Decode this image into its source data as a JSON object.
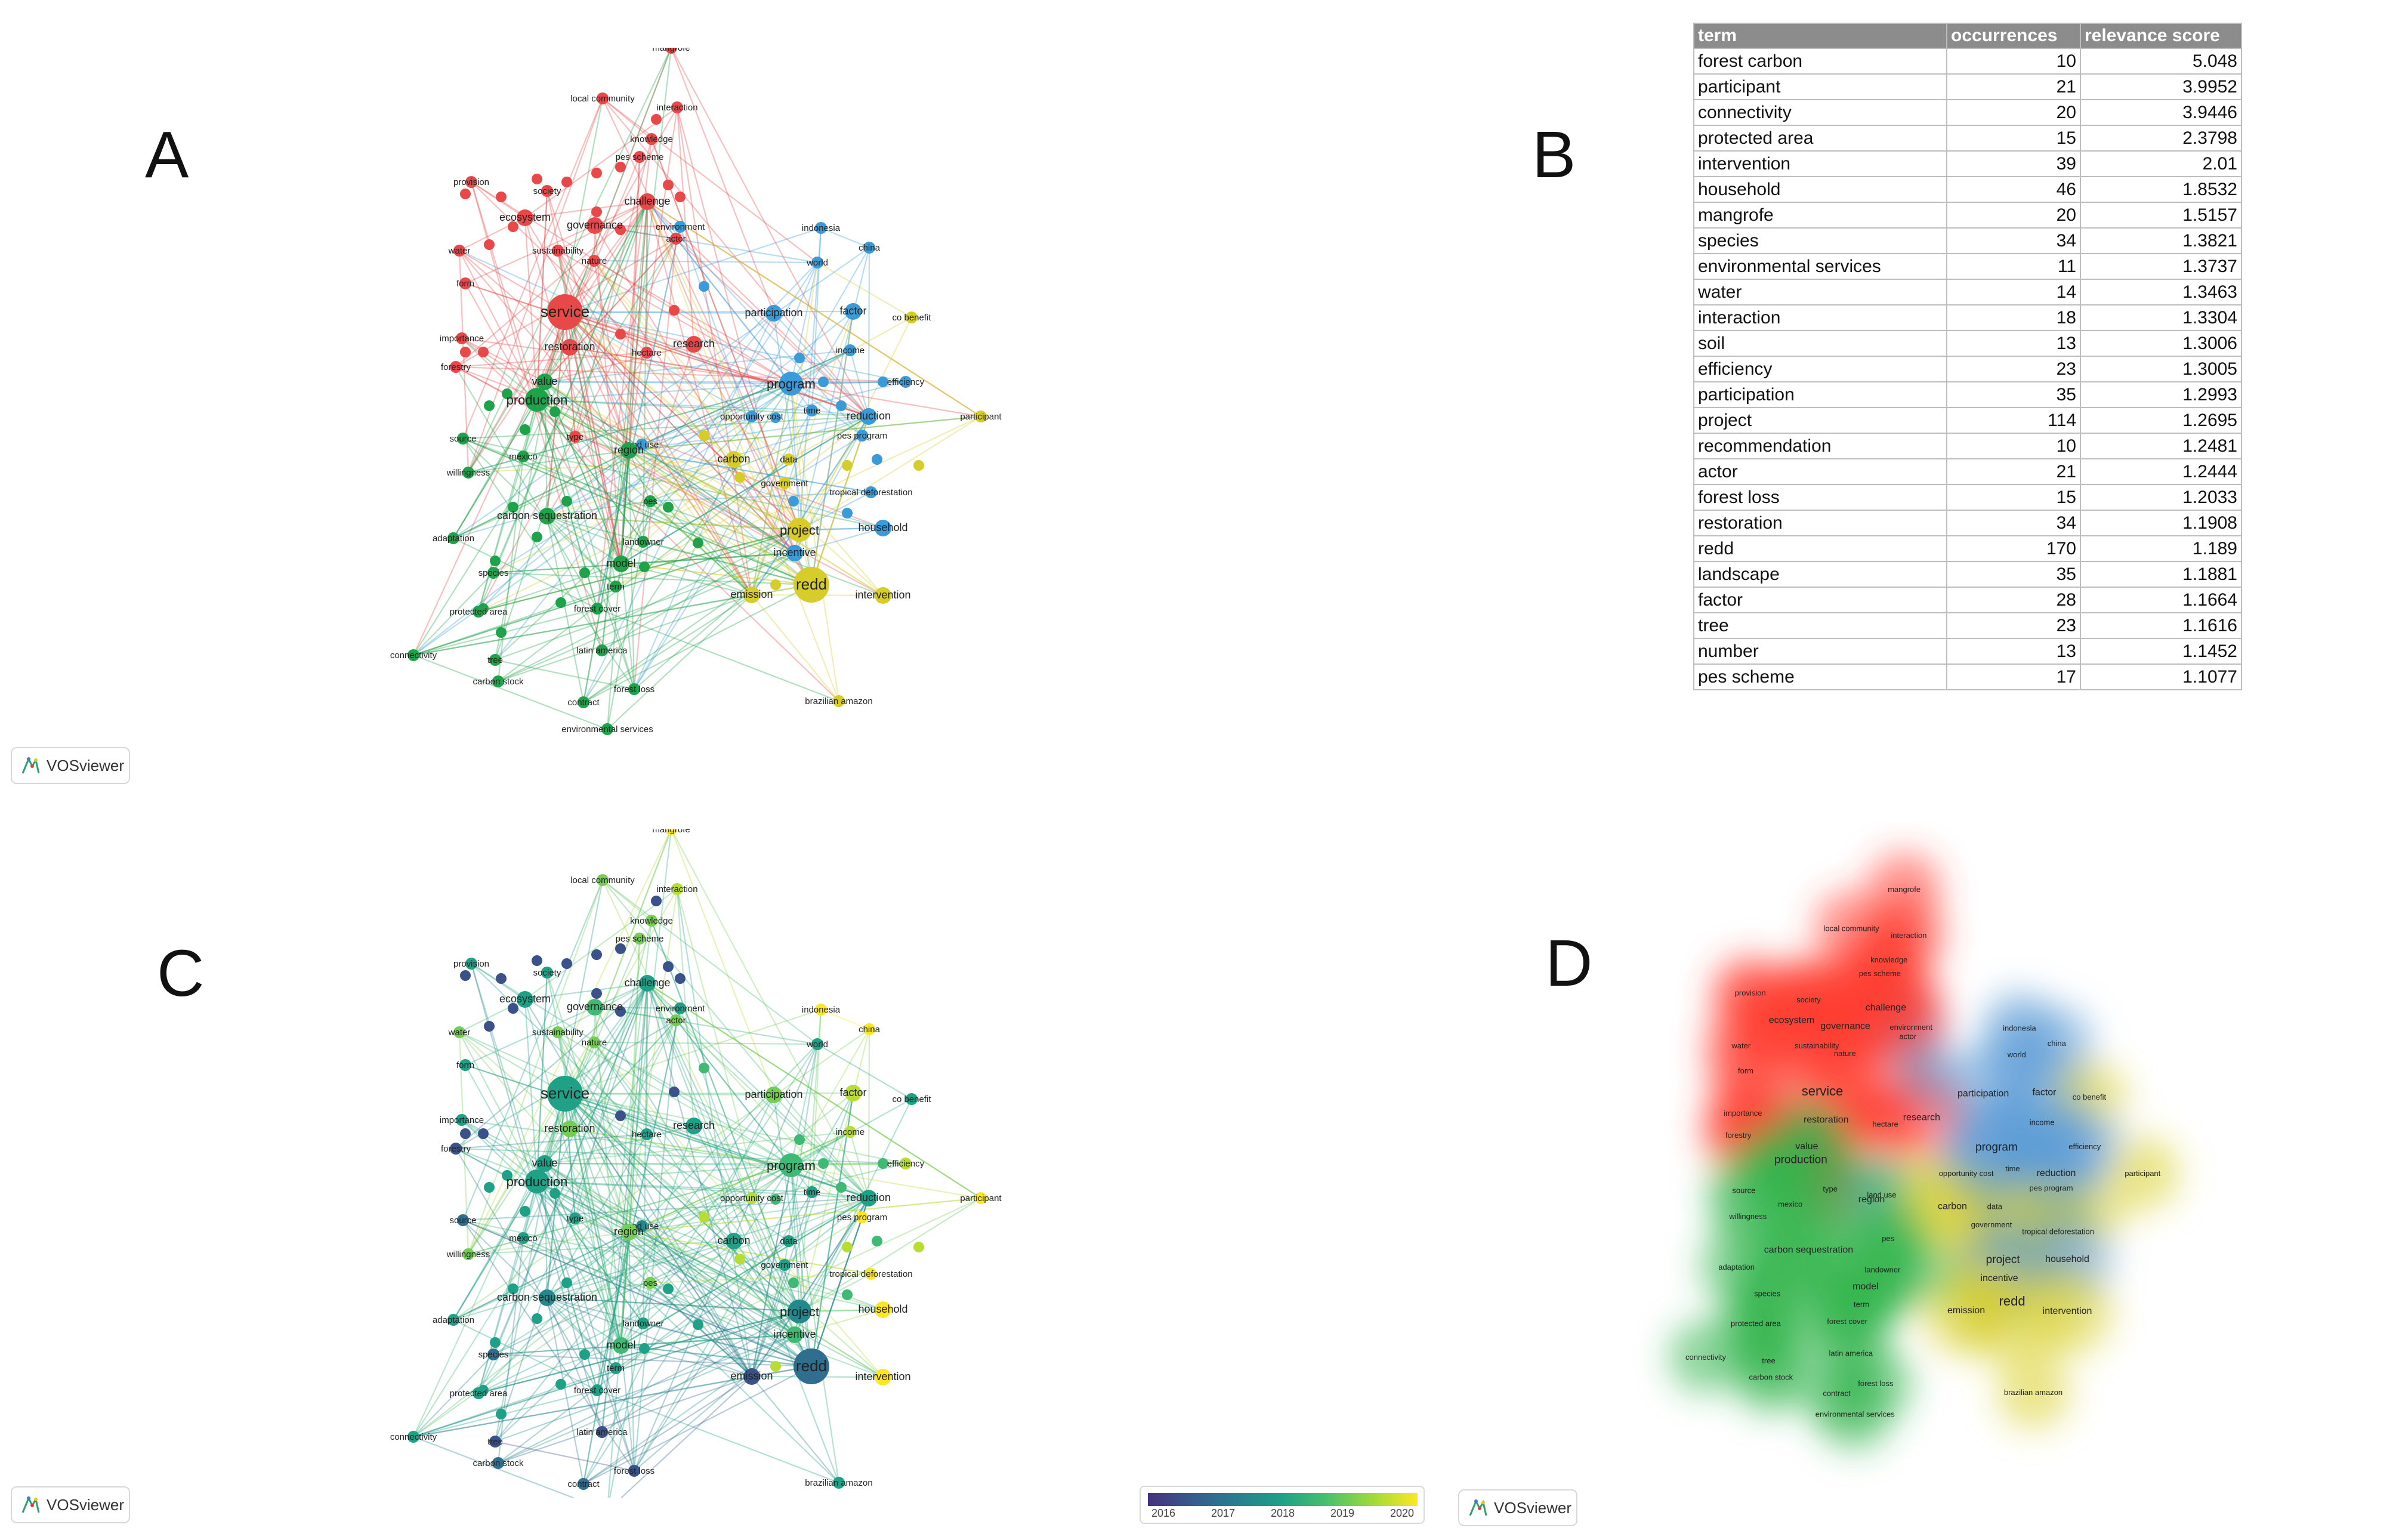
{
  "panels": {
    "a": "A",
    "b": "B",
    "c": "C",
    "d": "D"
  },
  "vosviewer_label": "VOSviewer",
  "legend": {
    "years": [
      "2016",
      "2017",
      "2018",
      "2019",
      "2020"
    ]
  },
  "table": {
    "headers": [
      "term",
      "occurrences",
      "relevance score"
    ],
    "rows": [
      [
        "forest carbon",
        "10",
        "5.048"
      ],
      [
        "participant",
        "21",
        "3.9952"
      ],
      [
        "connectivity",
        "20",
        "3.9446"
      ],
      [
        "protected area",
        "15",
        "2.3798"
      ],
      [
        "intervention",
        "39",
        "2.01"
      ],
      [
        "household",
        "46",
        "1.8532"
      ],
      [
        "mangrofe",
        "20",
        "1.5157"
      ],
      [
        "species",
        "34",
        "1.3821"
      ],
      [
        "environmental services",
        "11",
        "1.3737"
      ],
      [
        "water",
        "14",
        "1.3463"
      ],
      [
        "interaction",
        "18",
        "1.3304"
      ],
      [
        "soil",
        "13",
        "1.3006"
      ],
      [
        "efficiency",
        "23",
        "1.3005"
      ],
      [
        "participation",
        "35",
        "1.2993"
      ],
      [
        "project",
        "114",
        "1.2695"
      ],
      [
        "recommendation",
        "10",
        "1.2481"
      ],
      [
        "actor",
        "21",
        "1.2444"
      ],
      [
        "forest loss",
        "15",
        "1.2033"
      ],
      [
        "restoration",
        "34",
        "1.1908"
      ],
      [
        "redd",
        "170",
        "1.189"
      ],
      [
        "landscape",
        "35",
        "1.1881"
      ],
      [
        "factor",
        "28",
        "1.1664"
      ],
      [
        "tree",
        "23",
        "1.1616"
      ],
      [
        "number",
        "13",
        "1.1452"
      ],
      [
        "pes scheme",
        "17",
        "1.1077"
      ]
    ]
  },
  "network": {
    "nodes": [
      {
        "label": "mangrofe",
        "cluster": "red",
        "year": 2020,
        "size": 1
      },
      {
        "label": "local community",
        "cluster": "red",
        "year": 2019,
        "size": 1
      },
      {
        "label": "interaction",
        "cluster": "red",
        "year": 2019.5,
        "size": 1
      },
      {
        "label": "knowledge",
        "cluster": "red",
        "year": 2019,
        "size": 1
      },
      {
        "label": "pes scheme",
        "cluster": "red",
        "year": 2019,
        "size": 1
      },
      {
        "label": "provision",
        "cluster": "red",
        "year": 2018,
        "size": 1
      },
      {
        "label": "society",
        "cluster": "red",
        "year": 2018,
        "size": 1
      },
      {
        "label": "challenge",
        "cluster": "red",
        "year": 2018,
        "size": 2
      },
      {
        "label": "ecosystem",
        "cluster": "red",
        "year": 2018,
        "size": 2
      },
      {
        "label": "governance",
        "cluster": "red",
        "year": 2018.5,
        "size": 2
      },
      {
        "label": "environment",
        "cluster": "blue",
        "year": 2018,
        "size": 1
      },
      {
        "label": "indonesia",
        "cluster": "blue",
        "year": 2020,
        "size": 1
      },
      {
        "label": "water",
        "cluster": "red",
        "year": 2019,
        "size": 1
      },
      {
        "label": "sustainability",
        "cluster": "red",
        "year": 2019,
        "size": 1
      },
      {
        "label": "nature",
        "cluster": "red",
        "year": 2019,
        "size": 1
      },
      {
        "label": "actor",
        "cluster": "red",
        "year": 2019,
        "size": 1
      },
      {
        "label": "china",
        "cluster": "blue",
        "year": 2020,
        "size": 1
      },
      {
        "label": "world",
        "cluster": "blue",
        "year": 2018,
        "size": 1
      },
      {
        "label": "form",
        "cluster": "red",
        "year": 2018,
        "size": 1
      },
      {
        "label": "service",
        "cluster": "red",
        "year": 2018,
        "size": 4
      },
      {
        "label": "participation",
        "cluster": "blue",
        "year": 2019,
        "size": 2
      },
      {
        "label": "factor",
        "cluster": "blue",
        "year": 2019.5,
        "size": 2
      },
      {
        "label": "co benefit",
        "cluster": "yellow",
        "year": 2018,
        "size": 1
      },
      {
        "label": "importance",
        "cluster": "red",
        "year": 2018,
        "size": 1
      },
      {
        "label": "restoration",
        "cluster": "red",
        "year": 2019,
        "size": 2
      },
      {
        "label": "hectare",
        "cluster": "red",
        "year": 2018,
        "size": 1
      },
      {
        "label": "research",
        "cluster": "red",
        "year": 2018,
        "size": 2
      },
      {
        "label": "income",
        "cluster": "blue",
        "year": 2019.5,
        "size": 1
      },
      {
        "label": "forestry",
        "cluster": "red",
        "year": 2016.5,
        "size": 1
      },
      {
        "label": "value",
        "cluster": "green",
        "year": 2018,
        "size": 2
      },
      {
        "label": "program",
        "cluster": "blue",
        "year": 2018.5,
        "size": 3
      },
      {
        "label": "efficiency",
        "cluster": "blue",
        "year": 2019.5,
        "size": 1
      },
      {
        "label": "production",
        "cluster": "green",
        "year": 2018,
        "size": 3
      },
      {
        "label": "opportunity cost",
        "cluster": "blue",
        "year": 2019.5,
        "size": 1
      },
      {
        "label": "time",
        "cluster": "blue",
        "year": 2018,
        "size": 1
      },
      {
        "label": "reduction",
        "cluster": "blue",
        "year": 2018,
        "size": 2
      },
      {
        "label": "participant",
        "cluster": "yellow",
        "year": 2020,
        "size": 1
      },
      {
        "label": "pes program",
        "cluster": "blue",
        "year": 2020,
        "size": 1
      },
      {
        "label": "source",
        "cluster": "green",
        "year": 2017,
        "size": 1
      },
      {
        "label": "type",
        "cluster": "red",
        "year": 2018,
        "size": 1
      },
      {
        "label": "land use",
        "cluster": "blue",
        "year": 2017.5,
        "size": 1
      },
      {
        "label": "region",
        "cluster": "green",
        "year": 2019,
        "size": 2
      },
      {
        "label": "carbon",
        "cluster": "yellow",
        "year": 2018,
        "size": 2
      },
      {
        "label": "mexico",
        "cluster": "green",
        "year": 2018,
        "size": 1
      },
      {
        "label": "data",
        "cluster": "yellow",
        "year": 2018,
        "size": 1
      },
      {
        "label": "willingness",
        "cluster": "green",
        "year": 2019,
        "size": 1
      },
      {
        "label": "government",
        "cluster": "yellow",
        "year": 2018,
        "size": 1
      },
      {
        "label": "tropical deforestation",
        "cluster": "blue",
        "year": 2020,
        "size": 1
      },
      {
        "label": "pes",
        "cluster": "green",
        "year": 2019,
        "size": 1
      },
      {
        "label": "carbon sequestration",
        "cluster": "green",
        "year": 2017.5,
        "size": 2
      },
      {
        "label": "project",
        "cluster": "yellow",
        "year": 2017.5,
        "size": 3
      },
      {
        "label": "household",
        "cluster": "blue",
        "year": 2020,
        "size": 2
      },
      {
        "label": "adaptation",
        "cluster": "green",
        "year": 2018,
        "size": 1
      },
      {
        "label": "landowner",
        "cluster": "green",
        "year": 2018,
        "size": 1
      },
      {
        "label": "incentive",
        "cluster": "blue",
        "year": 2018.5,
        "size": 2
      },
      {
        "label": "model",
        "cluster": "green",
        "year": 2018.5,
        "size": 2
      },
      {
        "label": "species",
        "cluster": "green",
        "year": 2017,
        "size": 1
      },
      {
        "label": "term",
        "cluster": "green",
        "year": 2018,
        "size": 1
      },
      {
        "label": "redd",
        "cluster": "yellow",
        "year": 2017,
        "size": 4
      },
      {
        "label": "emission",
        "cluster": "yellow",
        "year": 2016.5,
        "size": 2
      },
      {
        "label": "intervention",
        "cluster": "yellow",
        "year": 2020,
        "size": 2
      },
      {
        "label": "protected area",
        "cluster": "green",
        "year": 2018,
        "size": 1
      },
      {
        "label": "forest cover",
        "cluster": "green",
        "year": 2018,
        "size": 1
      },
      {
        "label": "connectivity",
        "cluster": "green",
        "year": 2018,
        "size": 1
      },
      {
        "label": "tree",
        "cluster": "green",
        "year": 2016.5,
        "size": 1
      },
      {
        "label": "latin america",
        "cluster": "green",
        "year": 2016.5,
        "size": 1
      },
      {
        "label": "carbon stock",
        "cluster": "green",
        "year": 2017,
        "size": 1
      },
      {
        "label": "forest loss",
        "cluster": "green",
        "year": 2016.5,
        "size": 1
      },
      {
        "label": "contract",
        "cluster": "green",
        "year": 2017,
        "size": 1
      },
      {
        "label": "brazilian amazon",
        "cluster": "yellow",
        "year": 2018,
        "size": 1
      },
      {
        "label": "environmental services",
        "cluster": "green",
        "year": 2017,
        "size": 1
      }
    ]
  }
}
